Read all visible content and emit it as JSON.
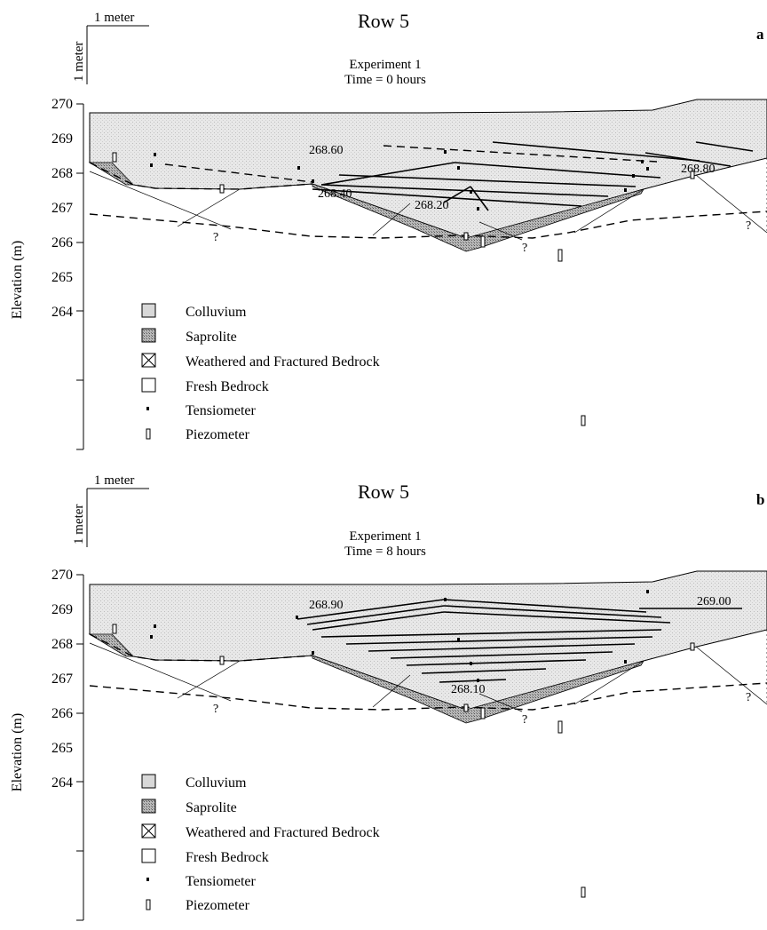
{
  "scale_bar": {
    "horizontal_label": "1 meter",
    "vertical_label": "1 meter"
  },
  "y_axis": {
    "label": "Elevation (m)",
    "ticks": [
      "270",
      "269",
      "268",
      "267",
      "266",
      "265",
      "264"
    ]
  },
  "legend": [
    {
      "key": "colluvium",
      "label": "Colluvium"
    },
    {
      "key": "saprolite",
      "label": "Saprolite"
    },
    {
      "key": "weathered",
      "label": "Weathered and Fractured Bedrock"
    },
    {
      "key": "fresh",
      "label": "Fresh Bedrock"
    },
    {
      "key": "tensiometer",
      "label": "Tensiometer"
    },
    {
      "key": "piezometer",
      "label": "Piezometer"
    }
  ],
  "unknown_marker": "?",
  "colors": {
    "colluvium": "#e4e4e4",
    "saprolite": "#9a9a9a",
    "line": "#000000"
  },
  "panels": [
    {
      "letter": "a",
      "title": "Row 5",
      "experiment": "Experiment 1",
      "time": "Time = 0 hours",
      "contour_labels": [
        "268.60",
        "268.80",
        "268.40",
        "268.20"
      ]
    },
    {
      "letter": "b",
      "title": "Row 5",
      "experiment": "Experiment 1",
      "time": "Time = 8 hours",
      "contour_labels": [
        "268.90",
        "269.00",
        "268.10"
      ]
    }
  ]
}
